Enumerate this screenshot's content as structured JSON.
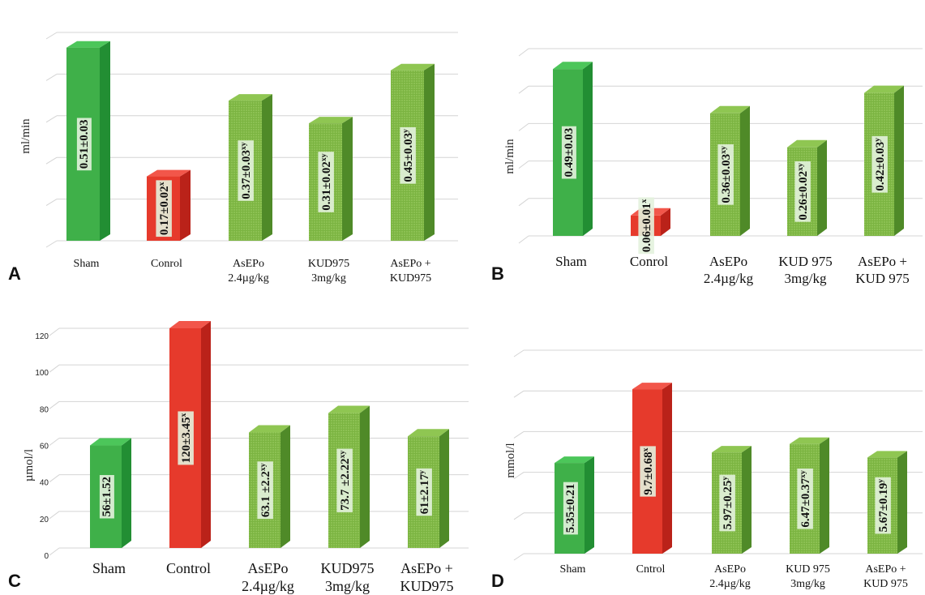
{
  "colors": {
    "green_front": "#3fb049",
    "green_side": "#228e33",
    "green_top": "#4cc65a",
    "dotted_front": "#7bb441",
    "dotted_side": "#4f8a28",
    "dotted_top": "#8fc652",
    "red_front": "#e63a2c",
    "red_side": "#ba2219",
    "red_top": "#f2564a",
    "label_bg": "#e3f2dd"
  },
  "chart_data": [
    {
      "panel": "A",
      "type": "bar",
      "ylabel": "ml/min",
      "ylim": [
        0,
        0.55
      ],
      "grid": true,
      "categories": [
        [
          "Sham"
        ],
        [
          "Conrol"
        ],
        [
          "AsEPo",
          "2.4µg/kg"
        ],
        [
          "KUD975",
          "3mg/kg"
        ],
        [
          "AsEPo +",
          "KUD975"
        ]
      ],
      "values": [
        0.51,
        0.17,
        0.37,
        0.31,
        0.45
      ],
      "value_labels": [
        "0.51±0.03",
        "0.17±0.02",
        "0.37±0.03",
        "0.31±0.02",
        "0.45±0.03"
      ],
      "value_sup": [
        "",
        "x",
        "xy",
        "xy",
        "y"
      ],
      "styles": [
        "green",
        "red",
        "dotted",
        "dotted",
        "dotted"
      ]
    },
    {
      "panel": "B",
      "type": "bar",
      "ylabel": "ml/min",
      "ylim": [
        0,
        0.55
      ],
      "grid": true,
      "categories": [
        [
          "Sham"
        ],
        [
          "Conrol"
        ],
        [
          "AsEPo",
          "2.4µg/kg"
        ],
        [
          "KUD 975",
          "3mg/kg"
        ],
        [
          "AsEPo +",
          "KUD 975"
        ]
      ],
      "values": [
        0.49,
        0.06,
        0.36,
        0.26,
        0.42
      ],
      "value_labels": [
        "0.49±0.03",
        "0.06±0.01",
        "0.36±0.03",
        "0.26±0.02",
        "0.42±0.03"
      ],
      "value_sup": [
        "",
        "x",
        "xy",
        "xy",
        "y"
      ],
      "styles": [
        "green",
        "red",
        "dotted",
        "dotted",
        "dotted"
      ]
    },
    {
      "panel": "C",
      "type": "bar",
      "ylabel": "µmol/l",
      "ylim": [
        0,
        120
      ],
      "grid": true,
      "yticks": [
        0,
        20,
        40,
        60,
        80,
        100,
        120
      ],
      "categories": [
        [
          "Sham"
        ],
        [
          "Control"
        ],
        [
          "AsEPo",
          "2.4µg/kg"
        ],
        [
          "KUD975",
          "3mg/kg"
        ],
        [
          "AsEPo +",
          "KUD975"
        ]
      ],
      "values": [
        56,
        120,
        63.1,
        73.7,
        61
      ],
      "value_labels": [
        "56±1.52",
        "120±3.45",
        "63.1 ±2.2",
        "73.7 ±2.22",
        "61±2.17"
      ],
      "value_sup": [
        "",
        "x",
        "xy",
        "xy",
        "y"
      ],
      "styles": [
        "green",
        "red",
        "dotted",
        "dotted",
        "dotted"
      ]
    },
    {
      "panel": "D",
      "type": "bar",
      "ylabel": "mmol/l",
      "ylim": [
        0,
        12
      ],
      "grid": true,
      "categories": [
        [
          "Sham"
        ],
        [
          "Cntrol"
        ],
        [
          "AsEPo",
          "2.4µg/kg"
        ],
        [
          "KUD 975",
          "3mg/kg"
        ],
        [
          "AsEPo +",
          "KUD 975"
        ]
      ],
      "values": [
        5.35,
        9.7,
        5.97,
        6.47,
        5.67
      ],
      "value_labels": [
        "5.35±0.21",
        "9.7±0.68",
        "5.97±0.25",
        "6.47±0.37",
        "5.67±0.19"
      ],
      "value_sup": [
        "",
        "x",
        "y",
        "xy",
        "y"
      ],
      "styles": [
        "green",
        "red",
        "dotted",
        "dotted",
        "dotted"
      ]
    }
  ]
}
